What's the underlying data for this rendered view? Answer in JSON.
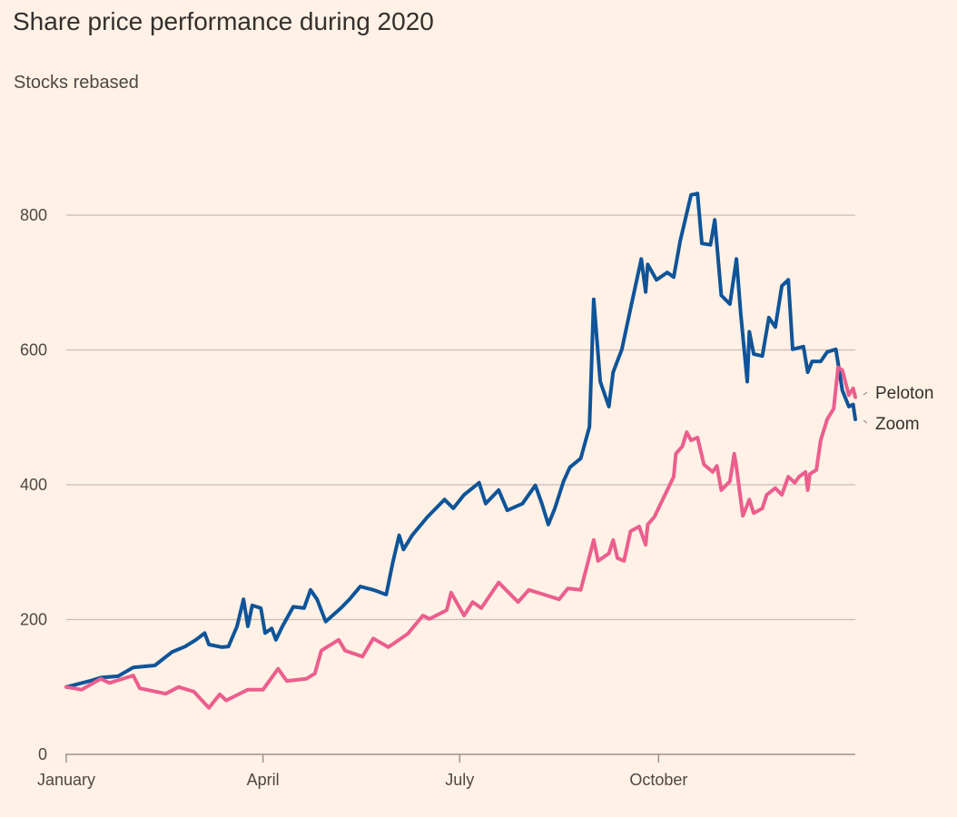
{
  "title": "Share price performance during 2020",
  "subtitle": "Stocks rebased",
  "colors": {
    "background": "#fff1e5",
    "zoom": "#0f5499",
    "peloton": "#eb5e8d",
    "grid": "#c9bdb3",
    "axis": "#9e928a"
  },
  "chart_data": {
    "type": "line",
    "title": "Share price performance during 2020",
    "subtitle": "Stocks rebased",
    "xlabel": "",
    "ylabel": "",
    "xlim": [
      "2020-01-01",
      "2020-12-31"
    ],
    "ylim": [
      0,
      800
    ],
    "y_ticks": [
      "0",
      "200",
      "400",
      "600",
      "800"
    ],
    "x_ticks": [
      {
        "label": "January",
        "date": "2020-01-01"
      },
      {
        "label": "April",
        "date": "2020-04-01"
      },
      {
        "label": "July",
        "date": "2020-07-01"
      },
      {
        "label": "October",
        "date": "2020-10-01"
      }
    ],
    "grid": true,
    "legend": "inline labels at right end of lines",
    "series": [
      {
        "name": "Peloton",
        "color": "#eb5e8d",
        "points": [
          [
            "2020-01-01",
            100
          ],
          [
            "2020-01-08",
            96
          ],
          [
            "2020-01-17",
            112
          ],
          [
            "2020-01-21",
            106
          ],
          [
            "2020-02-01",
            117
          ],
          [
            "2020-02-04",
            98
          ],
          [
            "2020-02-16",
            90
          ],
          [
            "2020-02-22",
            100
          ],
          [
            "2020-02-29",
            93
          ],
          [
            "2020-03-07",
            69
          ],
          [
            "2020-03-12",
            89
          ],
          [
            "2020-03-15",
            80
          ],
          [
            "2020-03-25",
            96
          ],
          [
            "2020-04-01",
            96
          ],
          [
            "2020-04-08",
            127
          ],
          [
            "2020-04-12",
            109
          ],
          [
            "2020-04-21",
            112
          ],
          [
            "2020-04-25",
            120
          ],
          [
            "2020-04-28",
            154
          ],
          [
            "2020-05-06",
            170
          ],
          [
            "2020-05-09",
            154
          ],
          [
            "2020-05-17",
            145
          ],
          [
            "2020-05-22",
            172
          ],
          [
            "2020-05-29",
            159
          ],
          [
            "2020-06-07",
            179
          ],
          [
            "2020-06-14",
            206
          ],
          [
            "2020-06-17",
            201
          ],
          [
            "2020-06-25",
            214
          ],
          [
            "2020-06-27",
            240
          ],
          [
            "2020-07-03",
            206
          ],
          [
            "2020-07-07",
            226
          ],
          [
            "2020-07-11",
            217
          ],
          [
            "2020-07-19",
            255
          ],
          [
            "2020-07-28",
            226
          ],
          [
            "2020-08-02",
            244
          ],
          [
            "2020-08-09",
            237
          ],
          [
            "2020-08-16",
            230
          ],
          [
            "2020-08-20",
            246
          ],
          [
            "2020-08-26",
            244
          ],
          [
            "2020-09-01",
            318
          ],
          [
            "2020-09-03",
            287
          ],
          [
            "2020-09-08",
            298
          ],
          [
            "2020-09-10",
            318
          ],
          [
            "2020-09-12",
            291
          ],
          [
            "2020-09-15",
            287
          ],
          [
            "2020-09-18",
            331
          ],
          [
            "2020-09-22",
            338
          ],
          [
            "2020-09-25",
            311
          ],
          [
            "2020-09-26",
            341
          ],
          [
            "2020-09-29",
            352
          ],
          [
            "2020-10-02",
            372
          ],
          [
            "2020-10-05",
            392
          ],
          [
            "2020-10-08",
            412
          ],
          [
            "2020-10-09",
            446
          ],
          [
            "2020-10-12",
            457
          ],
          [
            "2020-10-14",
            478
          ],
          [
            "2020-10-16",
            466
          ],
          [
            "2020-10-19",
            470
          ],
          [
            "2020-10-22",
            430
          ],
          [
            "2020-10-26",
            419
          ],
          [
            "2020-10-28",
            428
          ],
          [
            "2020-10-30",
            392
          ],
          [
            "2020-11-03",
            405
          ],
          [
            "2020-11-05",
            446
          ],
          [
            "2020-11-06",
            426
          ],
          [
            "2020-11-09",
            354
          ],
          [
            "2020-11-12",
            378
          ],
          [
            "2020-11-14",
            358
          ],
          [
            "2020-11-18",
            365
          ],
          [
            "2020-11-20",
            385
          ],
          [
            "2020-11-24",
            395
          ],
          [
            "2020-11-27",
            385
          ],
          [
            "2020-11-30",
            412
          ],
          [
            "2020-12-03",
            403
          ],
          [
            "2020-12-05",
            412
          ],
          [
            "2020-12-08",
            419
          ],
          [
            "2020-12-09",
            392
          ],
          [
            "2020-12-10",
            416
          ],
          [
            "2020-12-13",
            422
          ],
          [
            "2020-12-15",
            466
          ],
          [
            "2020-12-18",
            497
          ],
          [
            "2020-12-21",
            513
          ],
          [
            "2020-12-23",
            574
          ],
          [
            "2020-12-25",
            570
          ],
          [
            "2020-12-28",
            533
          ],
          [
            "2020-12-30",
            543
          ],
          [
            "2020-12-31",
            530
          ]
        ]
      },
      {
        "name": "Zoom",
        "color": "#0f5499",
        "points": [
          [
            "2020-01-01",
            100
          ],
          [
            "2020-01-12",
            109
          ],
          [
            "2020-01-17",
            114
          ],
          [
            "2020-01-25",
            116
          ],
          [
            "2020-02-01",
            129
          ],
          [
            "2020-02-11",
            132
          ],
          [
            "2020-02-19",
            152
          ],
          [
            "2020-02-25",
            160
          ],
          [
            "2020-03-01",
            170
          ],
          [
            "2020-03-05",
            180
          ],
          [
            "2020-03-07",
            163
          ],
          [
            "2020-03-13",
            159
          ],
          [
            "2020-03-16",
            160
          ],
          [
            "2020-03-20",
            190
          ],
          [
            "2020-03-23",
            230
          ],
          [
            "2020-03-25",
            190
          ],
          [
            "2020-03-27",
            221
          ],
          [
            "2020-03-31",
            217
          ],
          [
            "2020-04-02",
            180
          ],
          [
            "2020-04-05",
            187
          ],
          [
            "2020-04-07",
            170
          ],
          [
            "2020-04-10",
            190
          ],
          [
            "2020-04-15",
            219
          ],
          [
            "2020-04-20",
            217
          ],
          [
            "2020-04-23",
            244
          ],
          [
            "2020-04-26",
            230
          ],
          [
            "2020-04-30",
            197
          ],
          [
            "2020-05-07",
            217
          ],
          [
            "2020-05-11",
            230
          ],
          [
            "2020-05-16",
            249
          ],
          [
            "2020-05-22",
            244
          ],
          [
            "2020-05-28",
            237
          ],
          [
            "2020-05-31",
            284
          ],
          [
            "2020-06-03",
            325
          ],
          [
            "2020-06-05",
            304
          ],
          [
            "2020-06-09",
            325
          ],
          [
            "2020-06-16",
            352
          ],
          [
            "2020-06-24",
            378
          ],
          [
            "2020-06-28",
            365
          ],
          [
            "2020-07-03",
            385
          ],
          [
            "2020-07-10",
            403
          ],
          [
            "2020-07-13",
            372
          ],
          [
            "2020-07-19",
            392
          ],
          [
            "2020-07-23",
            362
          ],
          [
            "2020-07-30",
            372
          ],
          [
            "2020-08-05",
            399
          ],
          [
            "2020-08-08",
            372
          ],
          [
            "2020-08-11",
            341
          ],
          [
            "2020-08-14",
            365
          ],
          [
            "2020-08-18",
            405
          ],
          [
            "2020-08-21",
            426
          ],
          [
            "2020-08-26",
            439
          ],
          [
            "2020-08-30",
            486
          ],
          [
            "2020-09-01",
            675
          ],
          [
            "2020-09-04",
            553
          ],
          [
            "2020-09-08",
            516
          ],
          [
            "2020-09-10",
            567
          ],
          [
            "2020-09-14",
            601
          ],
          [
            "2020-09-18",
            661
          ],
          [
            "2020-09-23",
            735
          ],
          [
            "2020-09-25",
            686
          ],
          [
            "2020-09-26",
            727
          ],
          [
            "2020-09-30",
            704
          ],
          [
            "2020-10-05",
            715
          ],
          [
            "2020-10-08",
            708
          ],
          [
            "2020-10-11",
            762
          ],
          [
            "2020-10-16",
            830
          ],
          [
            "2020-10-19",
            832
          ],
          [
            "2020-10-21",
            758
          ],
          [
            "2020-10-25",
            756
          ],
          [
            "2020-10-27",
            793
          ],
          [
            "2020-10-30",
            681
          ],
          [
            "2020-11-03",
            668
          ],
          [
            "2020-11-06",
            735
          ],
          [
            "2020-11-08",
            654
          ],
          [
            "2020-11-11",
            553
          ],
          [
            "2020-11-12",
            627
          ],
          [
            "2020-11-14",
            594
          ],
          [
            "2020-11-18",
            591
          ],
          [
            "2020-11-21",
            648
          ],
          [
            "2020-11-24",
            634
          ],
          [
            "2020-11-27",
            695
          ],
          [
            "2020-11-30",
            704
          ],
          [
            "2020-12-02",
            601
          ],
          [
            "2020-12-07",
            605
          ],
          [
            "2020-12-09",
            567
          ],
          [
            "2020-12-11",
            583
          ],
          [
            "2020-12-15",
            583
          ],
          [
            "2020-12-18",
            597
          ],
          [
            "2020-12-22",
            601
          ],
          [
            "2020-12-25",
            540
          ],
          [
            "2020-12-28",
            516
          ],
          [
            "2020-12-30",
            519
          ],
          [
            "2020-12-31",
            497
          ]
        ]
      }
    ]
  }
}
